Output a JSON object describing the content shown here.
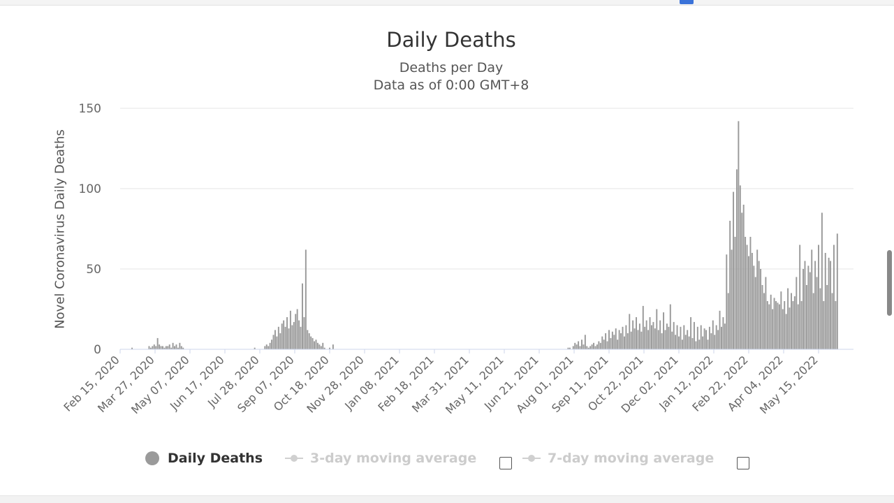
{
  "chart_data": {
    "type": "bar",
    "title": "Daily Deaths",
    "subtitle": "Deaths per Day",
    "subtitle2": "Data as of 0:00 GMT+8",
    "ylabel": "Novel Coronavirus Daily Deaths",
    "xlabel": "",
    "ylim": [
      0,
      150
    ],
    "yticks": [
      0,
      50,
      100,
      150
    ],
    "grid": true,
    "bar_color": "#9a9a9a",
    "x_start_date": "2020-02-15",
    "x_end_date": "2022-06-25",
    "x_tick_labels": [
      "Feb 15, 2020",
      "Mar 27, 2020",
      "May 07, 2020",
      "Jun 17, 2020",
      "Jul 28, 2020",
      "Sep 07, 2020",
      "Oct 18, 2020",
      "Nov 28, 2020",
      "Jan 08, 2021",
      "Feb 18, 2021",
      "Mar 31, 2021",
      "May 11, 2021",
      "Jun 21, 2021",
      "Aug 01, 2021",
      "Sep 11, 2021",
      "Oct 22, 2021",
      "Dec 02, 2021",
      "Jan 12, 2022",
      "Feb 22, 2022",
      "Apr 04, 2022",
      "May 15, 2022"
    ],
    "series": [
      {
        "name": "Daily Deaths",
        "start_date": "2020-02-15",
        "step_days": 2,
        "values": [
          0,
          0,
          0,
          0,
          0,
          0,
          0,
          1,
          0,
          0,
          0,
          0,
          0,
          0,
          0,
          0,
          0,
          2,
          1,
          2,
          3,
          2,
          7,
          3,
          2,
          2,
          1,
          2,
          2,
          3,
          1,
          4,
          2,
          3,
          1,
          4,
          2,
          1,
          0,
          0,
          0,
          0,
          0,
          0,
          0,
          0,
          0,
          0,
          0,
          0,
          0,
          0,
          0,
          0,
          0,
          0,
          0,
          0,
          0,
          0,
          0,
          0,
          0,
          0,
          0,
          0,
          0,
          0,
          0,
          0,
          0,
          0,
          0,
          0,
          0,
          0,
          0,
          0,
          0,
          1,
          0,
          0,
          0,
          0,
          0,
          2,
          3,
          2,
          4,
          6,
          9,
          12,
          8,
          14,
          10,
          16,
          18,
          14,
          20,
          13,
          24,
          15,
          17,
          22,
          25,
          18,
          14,
          41,
          20,
          62,
          12,
          10,
          8,
          7,
          5,
          6,
          4,
          3,
          2,
          4,
          1,
          0,
          0,
          1,
          0,
          3,
          0,
          0,
          0,
          0,
          0,
          0,
          0,
          0,
          0,
          0,
          0,
          0,
          0,
          0,
          0,
          0,
          0,
          0,
          0,
          0,
          0,
          0,
          0,
          0,
          0,
          0,
          0,
          0,
          0,
          0,
          0,
          0,
          0,
          0,
          0,
          0,
          0,
          0,
          0,
          0,
          0,
          0,
          0,
          0,
          0,
          0,
          0,
          0,
          0,
          0,
          0,
          0,
          0,
          0,
          0,
          0,
          0,
          0,
          0,
          0,
          0,
          0,
          0,
          0,
          0,
          0,
          0,
          0,
          0,
          0,
          0,
          0,
          0,
          0,
          0,
          0,
          0,
          0,
          0,
          0,
          0,
          0,
          0,
          0,
          0,
          0,
          0,
          0,
          0,
          0,
          0,
          0,
          0,
          0,
          0,
          0,
          0,
          0,
          0,
          0,
          0,
          0,
          0,
          0,
          0,
          0,
          0,
          0,
          0,
          0,
          0,
          0,
          0,
          0,
          0,
          0,
          0,
          0,
          0,
          0,
          0,
          0,
          0,
          0,
          0,
          0,
          0,
          0,
          0,
          0,
          0,
          0,
          0,
          0,
          0,
          0,
          0,
          1,
          1,
          0,
          2,
          4,
          3,
          5,
          2,
          6,
          3,
          9,
          2,
          1,
          2,
          3,
          4,
          2,
          3,
          5,
          4,
          8,
          6,
          10,
          5,
          12,
          7,
          11,
          9,
          13,
          6,
          12,
          10,
          14,
          8,
          15,
          10,
          22,
          11,
          18,
          13,
          20,
          12,
          16,
          11,
          27,
          14,
          18,
          12,
          20,
          15,
          17,
          13,
          25,
          12,
          18,
          10,
          23,
          12,
          16,
          14,
          28,
          11,
          17,
          9,
          15,
          8,
          14,
          6,
          15,
          9,
          12,
          8,
          20,
          7,
          17,
          5,
          14,
          6,
          15,
          8,
          13,
          12,
          6,
          14,
          10,
          18,
          9,
          15,
          12,
          24,
          14,
          20,
          16,
          59,
          35,
          80,
          62,
          98,
          70,
          112,
          142,
          102,
          85,
          90,
          70,
          65,
          58,
          70,
          60,
          52,
          45,
          62,
          55,
          50,
          40,
          35,
          45,
          30,
          28,
          34,
          25,
          32,
          30,
          29,
          28,
          36,
          25,
          30,
          22,
          38,
          26,
          35,
          30,
          33,
          45,
          28,
          65,
          30,
          50,
          55,
          40,
          52,
          48,
          62,
          35,
          55,
          45,
          65,
          38,
          85,
          30,
          60,
          40,
          57,
          55,
          35,
          65,
          30,
          72
        ]
      },
      {
        "name": "3-day moving average",
        "visible": false
      },
      {
        "name": "7-day moving average",
        "visible": false
      }
    ]
  },
  "legend": {
    "items": [
      {
        "label": "Daily Deaths",
        "active": true
      },
      {
        "label": "3-day moving average",
        "active": false
      },
      {
        "label": "7-day moving average",
        "active": false
      }
    ]
  }
}
